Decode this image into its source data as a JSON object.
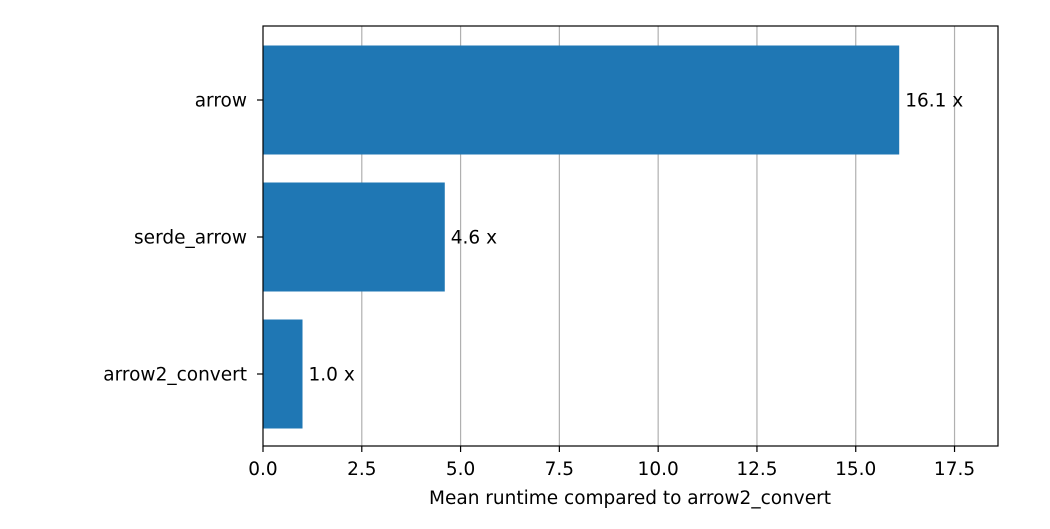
{
  "chart_data": {
    "type": "bar",
    "orientation": "horizontal",
    "categories": [
      "arrow",
      "serde_arrow",
      "arrow2_convert"
    ],
    "values": [
      16.1,
      4.6,
      1.0
    ],
    "data_labels": [
      "16.1 x",
      "4.6 x",
      "1.0 x"
    ],
    "title": "",
    "xlabel": "Mean runtime compared to arrow2_convert",
    "ylabel": "",
    "xlim": [
      0,
      18.6
    ],
    "xticks": [
      0.0,
      2.5,
      5.0,
      7.5,
      10.0,
      12.5,
      15.0,
      17.5
    ],
    "xtick_labels": [
      "0.0",
      "2.5",
      "5.0",
      "7.5",
      "10.0",
      "12.5",
      "15.0",
      "17.5"
    ],
    "grid": "x-axis vertical gridlines",
    "legend": "none",
    "bar_color": "#1f77b4",
    "grid_color": "#b0b0b0"
  }
}
